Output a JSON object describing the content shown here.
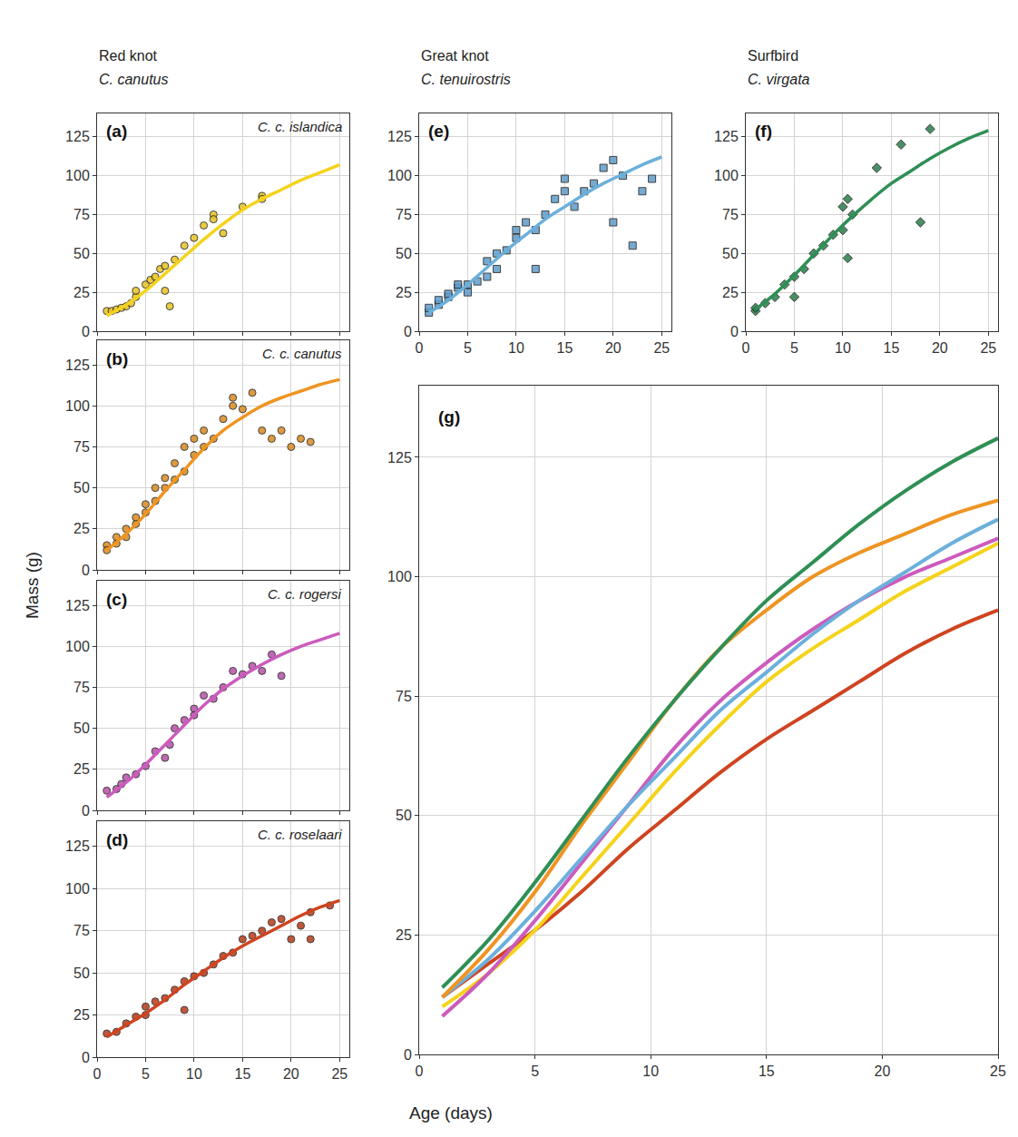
{
  "xlabel": "Age (days)",
  "ylabel": "Mass (g)",
  "chart_data": [
    {
      "type": "scatter",
      "panel": "(a)",
      "title": "Red knot",
      "subtitle": "C. canutus",
      "annotation": "C. c. islandica",
      "xlim": [
        0,
        26
      ],
      "ylim": [
        0,
        140
      ],
      "xticks": [
        0,
        5,
        10,
        15,
        20,
        25
      ],
      "yticks": [
        0,
        25,
        50,
        75,
        100,
        125
      ],
      "grid": true,
      "tick_labels": "y",
      "series": [
        {
          "type": "scatter",
          "marker": "circle",
          "color": "#e8c320",
          "x": [
            1,
            1.5,
            2,
            2.5,
            3,
            3.5,
            4,
            4,
            5,
            5.5,
            6,
            6.5,
            7,
            7,
            7.5,
            8,
            9,
            10,
            11,
            12,
            12,
            13,
            15,
            17,
            17
          ],
          "values": [
            13,
            13,
            14,
            15,
            16,
            18,
            22,
            26,
            30,
            33,
            35,
            40,
            42,
            26,
            16,
            46,
            55,
            60,
            68,
            75,
            72,
            63,
            80,
            87,
            85
          ]
        },
        {
          "type": "line",
          "color": "#f5d31a",
          "x": [
            1,
            3,
            5,
            7,
            9,
            11,
            13,
            15,
            17,
            19,
            21,
            23,
            25
          ],
          "values": [
            10,
            17,
            26,
            37,
            48,
            59,
            69,
            78,
            85,
            91,
            97,
            102,
            107
          ]
        }
      ]
    },
    {
      "type": "scatter",
      "panel": "(b)",
      "annotation": "C. c. canutus",
      "xlim": [
        0,
        26
      ],
      "ylim": [
        0,
        140
      ],
      "xticks": [
        0,
        5,
        10,
        15,
        20,
        25
      ],
      "yticks": [
        0,
        25,
        50,
        75,
        100,
        125
      ],
      "grid": true,
      "tick_labels": "y",
      "series": [
        {
          "type": "scatter",
          "marker": "circle",
          "color": "#d98a1e",
          "x": [
            1,
            1,
            2,
            2,
            3,
            3,
            4,
            4,
            5,
            5,
            6,
            6,
            7,
            7,
            8,
            8,
            9,
            9,
            10,
            10,
            11,
            11,
            12,
            13,
            14,
            14,
            15,
            16,
            17,
            18,
            19,
            20,
            21,
            22
          ],
          "values": [
            15,
            12,
            16,
            20,
            20,
            25,
            28,
            32,
            35,
            40,
            42,
            50,
            50,
            56,
            55,
            65,
            60,
            75,
            80,
            70,
            85,
            75,
            80,
            92,
            100,
            105,
            98,
            108,
            85,
            80,
            85,
            75,
            80,
            78
          ]
        },
        {
          "type": "line",
          "color": "#ef9422",
          "x": [
            1,
            3,
            5,
            7,
            9,
            11,
            13,
            15,
            17,
            19,
            21,
            23,
            25
          ],
          "values": [
            12,
            22,
            34,
            48,
            61,
            74,
            85,
            93,
            100,
            105,
            109,
            113,
            116
          ]
        }
      ]
    },
    {
      "type": "scatter",
      "panel": "(c)",
      "annotation": "C. c. rogersi",
      "xlim": [
        0,
        26
      ],
      "ylim": [
        0,
        140
      ],
      "xticks": [
        0,
        5,
        10,
        15,
        20,
        25
      ],
      "yticks": [
        0,
        25,
        50,
        75,
        100,
        125
      ],
      "grid": true,
      "tick_labels": "y",
      "series": [
        {
          "type": "scatter",
          "marker": "circle",
          "color": "#b84fa8",
          "x": [
            1,
            2,
            2.5,
            3,
            4,
            5,
            6,
            7,
            7.5,
            8,
            9,
            10,
            10,
            11,
            12,
            13,
            14,
            15,
            16,
            17,
            18,
            19
          ],
          "values": [
            12,
            13,
            16,
            20,
            22,
            27,
            36,
            32,
            40,
            50,
            55,
            62,
            58,
            70,
            68,
            75,
            85,
            83,
            88,
            85,
            95,
            82
          ]
        },
        {
          "type": "line",
          "color": "#cc5bbd",
          "x": [
            1,
            3,
            5,
            7,
            9,
            11,
            13,
            15,
            17,
            19,
            21,
            23,
            25
          ],
          "values": [
            8,
            17,
            28,
            40,
            52,
            64,
            74,
            82,
            89,
            95,
            100,
            104,
            108
          ]
        }
      ]
    },
    {
      "type": "scatter",
      "panel": "(d)",
      "annotation": "C. c. roselaari",
      "xlim": [
        0,
        26
      ],
      "ylim": [
        0,
        140
      ],
      "xticks": [
        0,
        5,
        10,
        15,
        20,
        25
      ],
      "yticks": [
        0,
        25,
        50,
        75,
        100,
        125
      ],
      "grid": true,
      "series": [
        {
          "type": "scatter",
          "marker": "circle",
          "color": "#b83a18",
          "x": [
            1,
            2,
            3,
            4,
            5,
            5,
            6,
            7,
            8,
            9,
            9,
            10,
            11,
            12,
            13,
            14,
            15,
            16,
            17,
            18,
            19,
            20,
            21,
            22,
            22,
            24
          ],
          "values": [
            14,
            15,
            20,
            24,
            25,
            30,
            33,
            35,
            40,
            45,
            28,
            48,
            50,
            55,
            60,
            62,
            70,
            72,
            75,
            80,
            82,
            70,
            78,
            86,
            70,
            90
          ]
        },
        {
          "type": "line",
          "color": "#cf4420",
          "x": [
            1,
            3,
            5,
            7,
            9,
            11,
            13,
            15,
            17,
            19,
            21,
            23,
            25
          ],
          "values": [
            12,
            19,
            26,
            34,
            43,
            51,
            59,
            66,
            72,
            78,
            84,
            89,
            93
          ]
        }
      ]
    },
    {
      "type": "scatter",
      "panel": "(e)",
      "title": "Great knot",
      "subtitle": "C. tenuirostris",
      "xlim": [
        0,
        26
      ],
      "ylim": [
        0,
        140
      ],
      "xticks": [
        0,
        5,
        10,
        15,
        20,
        25
      ],
      "yticks": [
        0,
        25,
        50,
        75,
        100,
        125
      ],
      "grid": true,
      "series": [
        {
          "type": "scatter",
          "marker": "square",
          "color": "#5d9ccb",
          "x": [
            1,
            1,
            2,
            2,
            3,
            3,
            4,
            4,
            5,
            5,
            6,
            7,
            7,
            8,
            8,
            9,
            10,
            10,
            11,
            12,
            12,
            13,
            14,
            15,
            15,
            16,
            17,
            18,
            19,
            20,
            20,
            21,
            22,
            23,
            24
          ],
          "values": [
            12,
            15,
            17,
            20,
            22,
            24,
            28,
            30,
            25,
            30,
            32,
            35,
            45,
            50,
            40,
            52,
            60,
            65,
            70,
            65,
            40,
            75,
            85,
            90,
            98,
            80,
            90,
            95,
            105,
            110,
            70,
            100,
            55,
            90,
            98
          ]
        },
        {
          "type": "line",
          "color": "#6bb0dc",
          "x": [
            1,
            3,
            5,
            7,
            9,
            11,
            13,
            15,
            17,
            19,
            21,
            23,
            25
          ],
          "values": [
            12,
            20,
            30,
            41,
            52,
            62,
            72,
            80,
            88,
            95,
            101,
            107,
            112
          ]
        }
      ]
    },
    {
      "type": "scatter",
      "panel": "(f)",
      "title": "Surfbird",
      "subtitle": "C. virgata",
      "xlim": [
        0,
        26
      ],
      "ylim": [
        0,
        140
      ],
      "xticks": [
        0,
        5,
        10,
        15,
        20,
        25
      ],
      "yticks": [
        0,
        25,
        50,
        75,
        100,
        125
      ],
      "grid": true,
      "series": [
        {
          "type": "scatter",
          "marker": "diamond",
          "color": "#2a7d4b",
          "x": [
            1,
            1,
            2,
            3,
            4,
            5,
            5,
            6,
            7,
            8,
            9,
            10,
            10,
            10.5,
            10.5,
            11,
            13.5,
            16,
            18,
            19
          ],
          "values": [
            13,
            15,
            18,
            22,
            30,
            22,
            35,
            40,
            50,
            55,
            62,
            65,
            80,
            85,
            47,
            75,
            105,
            120,
            70,
            130
          ]
        },
        {
          "type": "line",
          "color": "#2f8f55",
          "x": [
            1,
            3,
            5,
            7,
            9,
            11,
            13,
            15,
            17,
            19,
            21,
            23,
            25
          ],
          "values": [
            14,
            24,
            36,
            49,
            62,
            74,
            85,
            95,
            103,
            111,
            118,
            124,
            129
          ]
        }
      ]
    },
    {
      "type": "line",
      "panel": "(g)",
      "xlim": [
        0,
        25
      ],
      "ylim": [
        0,
        140
      ],
      "xticks": [
        0,
        5,
        10,
        15,
        20,
        25
      ],
      "yticks": [
        0,
        25,
        50,
        75,
        100,
        125
      ],
      "grid": true,
      "series": [
        {
          "color": "#cf4420",
          "x": [
            1,
            3,
            5,
            7,
            9,
            11,
            13,
            15,
            17,
            19,
            21,
            23,
            25
          ],
          "values": [
            12,
            19,
            26,
            34,
            43,
            51,
            59,
            66,
            72,
            78,
            84,
            89,
            93
          ]
        },
        {
          "color": "#f5d31a",
          "x": [
            1,
            3,
            5,
            7,
            9,
            11,
            13,
            15,
            17,
            19,
            21,
            23,
            25
          ],
          "values": [
            10,
            17,
            26,
            37,
            48,
            59,
            69,
            78,
            85,
            91,
            97,
            102,
            107
          ]
        },
        {
          "color": "#cc5bbd",
          "x": [
            1,
            3,
            5,
            7,
            9,
            11,
            13,
            15,
            17,
            19,
            21,
            23,
            25
          ],
          "values": [
            8,
            17,
            28,
            40,
            52,
            64,
            74,
            82,
            89,
            95,
            100,
            104,
            108
          ]
        },
        {
          "color": "#6bb0dc",
          "x": [
            1,
            3,
            5,
            7,
            9,
            11,
            13,
            15,
            17,
            19,
            21,
            23,
            25
          ],
          "values": [
            12,
            20,
            30,
            41,
            52,
            62,
            72,
            80,
            88,
            95,
            101,
            107,
            112
          ]
        },
        {
          "color": "#ef9422",
          "x": [
            1,
            3,
            5,
            7,
            9,
            11,
            13,
            15,
            17,
            19,
            21,
            23,
            25
          ],
          "values": [
            12,
            22,
            34,
            48,
            61,
            74,
            85,
            93,
            100,
            105,
            109,
            113,
            116
          ]
        },
        {
          "color": "#2f8f55",
          "x": [
            1,
            3,
            5,
            7,
            9,
            11,
            13,
            15,
            17,
            19,
            21,
            23,
            25
          ],
          "values": [
            14,
            24,
            36,
            49,
            62,
            74,
            85,
            95,
            103,
            111,
            118,
            124,
            129
          ]
        }
      ]
    }
  ]
}
